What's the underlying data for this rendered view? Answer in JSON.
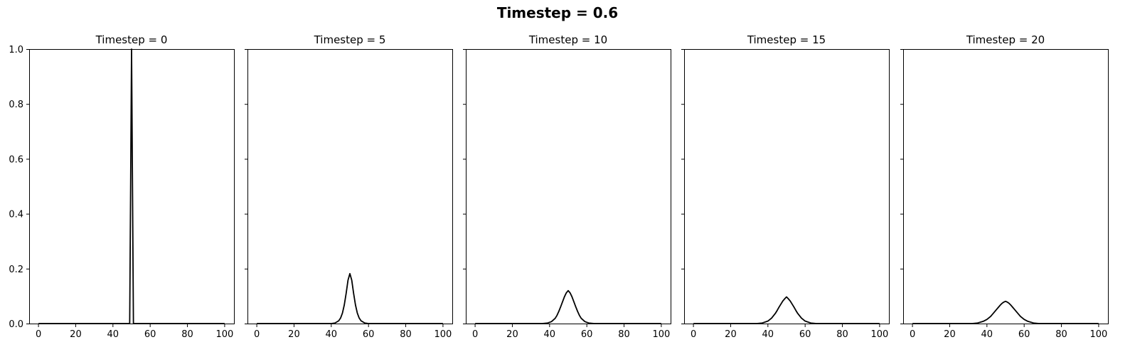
{
  "figure": {
    "suptitle": "Timestep = 0.6"
  },
  "chart_data": [
    {
      "type": "line",
      "title": "Timestep = 0",
      "xlabel": "",
      "ylabel": "",
      "xlim": [
        -5,
        105
      ],
      "ylim": [
        0,
        1
      ],
      "xticks": [
        0,
        20,
        40,
        60,
        80,
        100
      ],
      "yticks": [
        0.0,
        0.2,
        0.4,
        0.6,
        0.8,
        1.0
      ],
      "ytick_labels_shown": true,
      "grid": false,
      "line_color": "#000000",
      "x": [
        0,
        49,
        50,
        51,
        100
      ],
      "y": [
        0,
        0,
        1.0,
        0,
        0
      ]
    },
    {
      "type": "line",
      "title": "Timestep = 5",
      "xlabel": "",
      "ylabel": "",
      "xlim": [
        -5,
        105
      ],
      "ylim": [
        0,
        1
      ],
      "xticks": [
        0,
        20,
        40,
        60,
        80,
        100
      ],
      "yticks": [
        0.0,
        0.2,
        0.4,
        0.6,
        0.8,
        1.0
      ],
      "ytick_labels_shown": false,
      "grid": false,
      "line_color": "#000000",
      "x": [
        0,
        40,
        42,
        44,
        45,
        46,
        47,
        48,
        49,
        50,
        51,
        52,
        53,
        54,
        55,
        56,
        58,
        60,
        100
      ],
      "y": [
        0,
        0.0,
        0.002,
        0.01,
        0.02,
        0.038,
        0.068,
        0.11,
        0.158,
        0.182,
        0.158,
        0.11,
        0.068,
        0.038,
        0.02,
        0.01,
        0.002,
        0.0,
        0
      ]
    },
    {
      "type": "line",
      "title": "Timestep = 10",
      "xlabel": "",
      "ylabel": "",
      "xlim": [
        -5,
        105
      ],
      "ylim": [
        0,
        1
      ],
      "xticks": [
        0,
        20,
        40,
        60,
        80,
        100
      ],
      "yticks": [
        0.0,
        0.2,
        0.4,
        0.6,
        0.8,
        1.0
      ],
      "ytick_labels_shown": false,
      "grid": false,
      "line_color": "#000000",
      "x": [
        0,
        36,
        39,
        41,
        43,
        44,
        45,
        46,
        47,
        48,
        49,
        50,
        51,
        52,
        53,
        54,
        55,
        56,
        57,
        59,
        61,
        64,
        100
      ],
      "y": [
        0,
        0.0,
        0.002,
        0.007,
        0.019,
        0.03,
        0.045,
        0.062,
        0.08,
        0.098,
        0.112,
        0.12,
        0.112,
        0.098,
        0.08,
        0.062,
        0.045,
        0.03,
        0.019,
        0.007,
        0.002,
        0.0,
        0
      ]
    },
    {
      "type": "line",
      "title": "Timestep = 15",
      "xlabel": "",
      "ylabel": "",
      "xlim": [
        -5,
        105
      ],
      "ylim": [
        0,
        1
      ],
      "xticks": [
        0,
        20,
        40,
        60,
        80,
        100
      ],
      "yticks": [
        0.0,
        0.2,
        0.4,
        0.6,
        0.8,
        1.0
      ],
      "ytick_labels_shown": false,
      "grid": false,
      "line_color": "#000000",
      "x": [
        0,
        34,
        37,
        40,
        42,
        44,
        45,
        46,
        47,
        48,
        49,
        50,
        51,
        52,
        53,
        54,
        55,
        56,
        58,
        60,
        63,
        66,
        100
      ],
      "y": [
        0,
        0.0,
        0.002,
        0.009,
        0.02,
        0.037,
        0.048,
        0.06,
        0.071,
        0.082,
        0.09,
        0.097,
        0.09,
        0.082,
        0.071,
        0.06,
        0.048,
        0.037,
        0.02,
        0.009,
        0.002,
        0.0,
        0
      ]
    },
    {
      "type": "line",
      "title": "Timestep = 20",
      "xlabel": "",
      "ylabel": "",
      "xlim": [
        -5,
        105
      ],
      "ylim": [
        0,
        1
      ],
      "xticks": [
        0,
        20,
        40,
        60,
        80,
        100
      ],
      "yticks": [
        0.0,
        0.2,
        0.4,
        0.6,
        0.8,
        1.0
      ],
      "ytick_labels_shown": false,
      "grid": false,
      "line_color": "#000000",
      "x": [
        0,
        32,
        35,
        38,
        40,
        42,
        44,
        45,
        46,
        47,
        48,
        49,
        50,
        51,
        52,
        53,
        54,
        55,
        56,
        58,
        60,
        62,
        65,
        68,
        100
      ],
      "y": [
        0,
        0.0,
        0.002,
        0.008,
        0.015,
        0.026,
        0.042,
        0.05,
        0.058,
        0.066,
        0.073,
        0.078,
        0.081,
        0.078,
        0.073,
        0.066,
        0.058,
        0.05,
        0.042,
        0.026,
        0.015,
        0.008,
        0.002,
        0.0,
        0
      ]
    }
  ]
}
